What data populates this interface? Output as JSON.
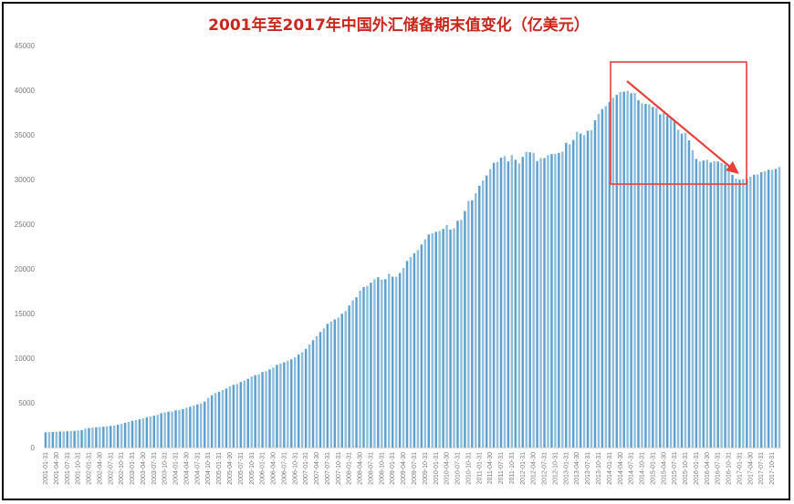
{
  "chart_data": {
    "type": "bar",
    "title": "2001年至2017年中国外汇储备期末值变化（亿美元）",
    "xlabel": "",
    "ylabel": "",
    "ylim": [
      0,
      45000
    ],
    "yticks": [
      0,
      5000,
      10000,
      15000,
      20000,
      25000,
      30000,
      35000,
      40000,
      45000
    ],
    "grid": false,
    "legend": "none",
    "colors": {
      "bar": "#6ea8d0",
      "highlight_box": "#e8403a",
      "arrow": "#e8403a",
      "title": "#c8281e"
    },
    "x_tick_labels": [
      "2001-01-31",
      "2001-04-30",
      "2001-07-31",
      "2001-10-31",
      "2002-01-31",
      "2002-04-30",
      "2002-07-31",
      "2002-10-31",
      "2003-01-31",
      "2003-04-30",
      "2003-07-31",
      "2003-10-31",
      "2004-01-31",
      "2004-04-30",
      "2004-07-31",
      "2004-10-31",
      "2005-01-31",
      "2005-04-30",
      "2005-07-31",
      "2005-10-31",
      "2006-01-31",
      "2006-04-30",
      "2006-07-31",
      "2006-10-31",
      "2007-01-31",
      "2007-04-30",
      "2007-07-31",
      "2007-10-31",
      "2008-01-31",
      "2008-04-30",
      "2008-07-31",
      "2008-10-31",
      "2009-01-31",
      "2009-04-30",
      "2009-07-31",
      "2009-10-31",
      "2010-01-31",
      "2010-04-30",
      "2010-07-31",
      "2010-10-31",
      "2011-01-31",
      "2011-04-30",
      "2011-07-31",
      "2011-10-31",
      "2012-01-31",
      "2012-04-30",
      "2012-07-31",
      "2012-10-31",
      "2013-01-31",
      "2013-04-30",
      "2013-07-31",
      "2013-10-31",
      "2014-01-31",
      "2014-04-30",
      "2014-07-31",
      "2014-10-31",
      "2015-01-31",
      "2015-04-30",
      "2015-07-31",
      "2015-10-31",
      "2016-01-31",
      "2016-04-30",
      "2016-07-31",
      "2016-10-31",
      "2017-01-31",
      "2017-04-30",
      "2017-07-31",
      "2017-10-31"
    ],
    "x": [
      "2001-01",
      "2001-02",
      "2001-03",
      "2001-04",
      "2001-05",
      "2001-06",
      "2001-07",
      "2001-08",
      "2001-09",
      "2001-10",
      "2001-11",
      "2001-12",
      "2002-01",
      "2002-02",
      "2002-03",
      "2002-04",
      "2002-05",
      "2002-06",
      "2002-07",
      "2002-08",
      "2002-09",
      "2002-10",
      "2002-11",
      "2002-12",
      "2003-01",
      "2003-02",
      "2003-03",
      "2003-04",
      "2003-05",
      "2003-06",
      "2003-07",
      "2003-08",
      "2003-09",
      "2003-10",
      "2003-11",
      "2003-12",
      "2004-01",
      "2004-02",
      "2004-03",
      "2004-04",
      "2004-05",
      "2004-06",
      "2004-07",
      "2004-08",
      "2004-09",
      "2004-10",
      "2004-11",
      "2004-12",
      "2005-01",
      "2005-02",
      "2005-03",
      "2005-04",
      "2005-05",
      "2005-06",
      "2005-07",
      "2005-08",
      "2005-09",
      "2005-10",
      "2005-11",
      "2005-12",
      "2006-01",
      "2006-02",
      "2006-03",
      "2006-04",
      "2006-05",
      "2006-06",
      "2006-07",
      "2006-08",
      "2006-09",
      "2006-10",
      "2006-11",
      "2006-12",
      "2007-01",
      "2007-02",
      "2007-03",
      "2007-04",
      "2007-05",
      "2007-06",
      "2007-07",
      "2007-08",
      "2007-09",
      "2007-10",
      "2007-11",
      "2007-12",
      "2008-01",
      "2008-02",
      "2008-03",
      "2008-04",
      "2008-05",
      "2008-06",
      "2008-07",
      "2008-08",
      "2008-09",
      "2008-10",
      "2008-11",
      "2008-12",
      "2009-01",
      "2009-02",
      "2009-03",
      "2009-04",
      "2009-05",
      "2009-06",
      "2009-07",
      "2009-08",
      "2009-09",
      "2009-10",
      "2009-11",
      "2009-12",
      "2010-01",
      "2010-02",
      "2010-03",
      "2010-04",
      "2010-05",
      "2010-06",
      "2010-07",
      "2010-08",
      "2010-09",
      "2010-10",
      "2010-11",
      "2010-12",
      "2011-01",
      "2011-02",
      "2011-03",
      "2011-04",
      "2011-05",
      "2011-06",
      "2011-07",
      "2011-08",
      "2011-09",
      "2011-10",
      "2011-11",
      "2011-12",
      "2012-01",
      "2012-02",
      "2012-03",
      "2012-04",
      "2012-05",
      "2012-06",
      "2012-07",
      "2012-08",
      "2012-09",
      "2012-10",
      "2012-11",
      "2012-12",
      "2013-01",
      "2013-02",
      "2013-03",
      "2013-04",
      "2013-05",
      "2013-06",
      "2013-07",
      "2013-08",
      "2013-09",
      "2013-10",
      "2013-11",
      "2013-12",
      "2014-01",
      "2014-02",
      "2014-03",
      "2014-04",
      "2014-05",
      "2014-06",
      "2014-07",
      "2014-08",
      "2014-09",
      "2014-10",
      "2014-11",
      "2014-12",
      "2015-01",
      "2015-02",
      "2015-03",
      "2015-04",
      "2015-05",
      "2015-06",
      "2015-07",
      "2015-08",
      "2015-09",
      "2015-10",
      "2015-11",
      "2015-12",
      "2016-01",
      "2016-02",
      "2016-03",
      "2016-04",
      "2016-05",
      "2016-06",
      "2016-07",
      "2016-08",
      "2016-09",
      "2016-10",
      "2016-11",
      "2016-12",
      "2017-01",
      "2017-02",
      "2017-03",
      "2017-04",
      "2017-05",
      "2017-06",
      "2017-07",
      "2017-08",
      "2017-09",
      "2017-10",
      "2017-11",
      "2017-12"
    ],
    "values": [
      1700,
      1710,
      1730,
      1760,
      1790,
      1800,
      1820,
      1830,
      1860,
      1900,
      1950,
      2120,
      2190,
      2230,
      2260,
      2290,
      2330,
      2380,
      2420,
      2470,
      2550,
      2640,
      2770,
      2860,
      2990,
      3070,
      3160,
      3260,
      3400,
      3460,
      3560,
      3650,
      3840,
      3930,
      4010,
      4030,
      4150,
      4180,
      4290,
      4450,
      4560,
      4700,
      4830,
      4930,
      5140,
      5550,
      5840,
      6100,
      6240,
      6430,
      6600,
      6850,
      7010,
      7110,
      7330,
      7510,
      7690,
      7950,
      8100,
      8190,
      8450,
      8540,
      8750,
      8950,
      9250,
      9410,
      9540,
      9720,
      9880,
      10100,
      10420,
      10660,
      11040,
      11540,
      12020,
      12460,
      12930,
      13330,
      13850,
      14080,
      14340,
      14550,
      14970,
      15280,
      15900,
      16470,
      16820,
      17560,
      17970,
      18090,
      18450,
      18840,
      19060,
      18800,
      18850,
      19460,
      19130,
      19120,
      19540,
      20090,
      20890,
      21320,
      21750,
      22110,
      22730,
      23300,
      23850,
      23990,
      24150,
      24250,
      24470,
      24900,
      24400,
      24540,
      25380,
      25480,
      26480,
      27600,
      27680,
      28470,
      29310,
      29900,
      30450,
      31170,
      31870,
      31970,
      32450,
      32620,
      32020,
      32740,
      32210,
      31810,
      32540,
      33090,
      33050,
      32990,
      32060,
      32400,
      32400,
      32730,
      32850,
      32870,
      32980,
      33120,
      34100,
      33950,
      34430,
      35340,
      35150,
      34970,
      35470,
      35530,
      36630,
      37360,
      37890,
      38210,
      38670,
      39140,
      39480,
      39790,
      39840,
      39930,
      39660,
      39690,
      38870,
      38530,
      38470,
      38430,
      38130,
      38020,
      37300,
      37480,
      37110,
      36940,
      36510,
      35570,
      35140,
      35250,
      34380,
      33300,
      32310,
      32020,
      32130,
      32200,
      31910,
      32050,
      32010,
      31850,
      31660,
      31210,
      30520,
      30110,
      29980,
      30050,
      30090,
      30300,
      30540,
      30570,
      30810,
      30920,
      31090,
      31090,
      31190,
      31400
    ]
  }
}
